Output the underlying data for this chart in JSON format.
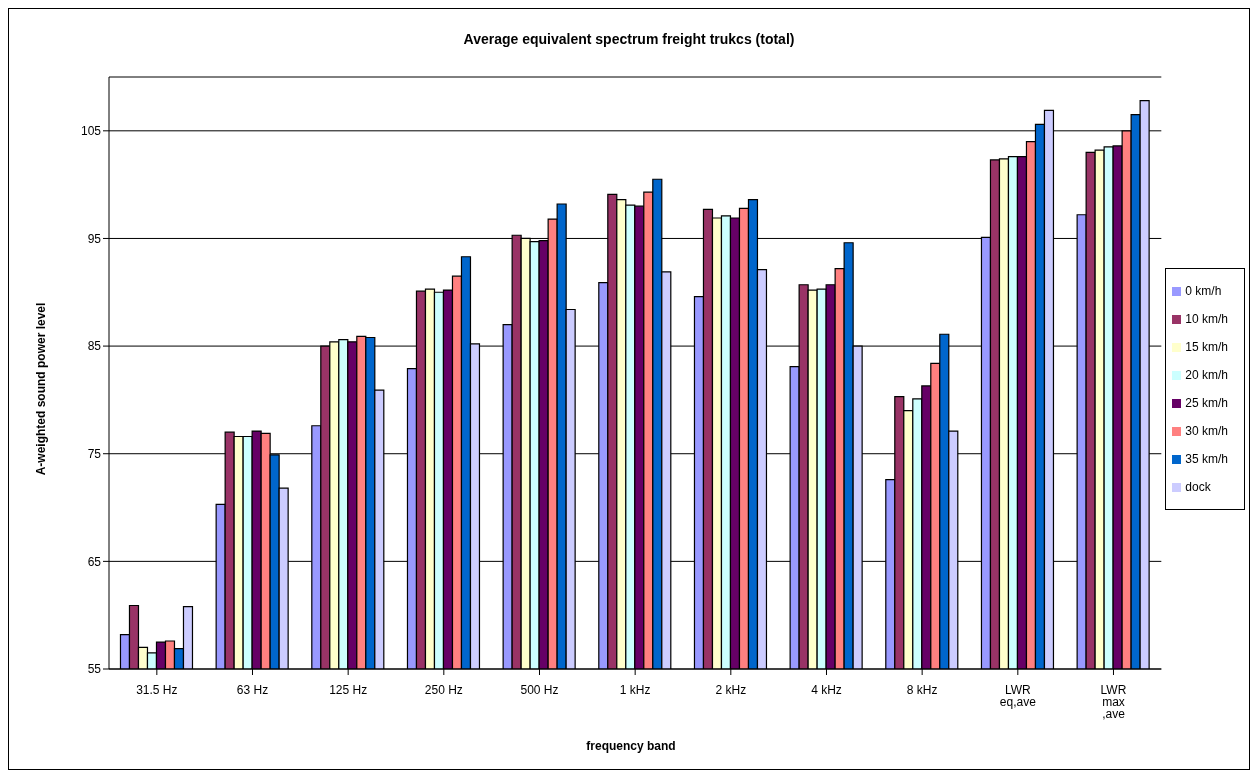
{
  "chart_data": {
    "type": "bar",
    "title": "Average equivalent spectrum  freight trukcs (total)",
    "xlabel": "frequency band",
    "ylabel": "A-weighted sound power level",
    "categories": [
      "31.5 Hz",
      "63 Hz",
      "125 Hz",
      "250 Hz",
      "500 Hz",
      "1 kHz",
      "2 kHz",
      "4 kHz",
      "8 kHz",
      "LWR eq,ave",
      "LWR max ,ave"
    ],
    "series": [
      {
        "name": "0 km/h",
        "color": "#9999ff",
        "values": [
          58.2,
          70.3,
          77.6,
          82.9,
          87.0,
          90.9,
          89.6,
          83.1,
          72.6,
          95.1,
          97.2
        ]
      },
      {
        "name": "10 km/h",
        "color": "#993366",
        "values": [
          60.9,
          77.0,
          85.0,
          90.1,
          95.3,
          99.1,
          97.7,
          90.7,
          80.3,
          102.3,
          103.0
        ]
      },
      {
        "name": "15 km/h",
        "color": "#ffffcc",
        "values": [
          57.0,
          76.6,
          85.4,
          90.3,
          95.0,
          98.6,
          96.9,
          90.2,
          79.0,
          102.4,
          103.2
        ]
      },
      {
        "name": "20 km/h",
        "color": "#ccffff",
        "values": [
          56.5,
          76.6,
          85.6,
          90.0,
          94.7,
          98.1,
          97.1,
          90.3,
          80.1,
          102.6,
          103.5
        ]
      },
      {
        "name": "25 km/h",
        "color": "#660066",
        "values": [
          57.5,
          77.1,
          85.4,
          90.2,
          94.8,
          98.0,
          96.9,
          90.7,
          81.3,
          102.6,
          103.6
        ]
      },
      {
        "name": "30 km/h",
        "color": "#ff8080",
        "values": [
          57.6,
          76.9,
          85.9,
          91.5,
          96.8,
          99.3,
          97.8,
          92.2,
          83.4,
          104.0,
          105.0
        ]
      },
      {
        "name": "35 km/h",
        "color": "#0066cc",
        "values": [
          56.9,
          74.9,
          85.8,
          93.3,
          98.2,
          100.5,
          98.6,
          94.6,
          86.1,
          105.6,
          106.5
        ]
      },
      {
        "name": "dock",
        "color": "#ccccff",
        "values": [
          60.8,
          71.8,
          80.9,
          85.2,
          88.4,
          91.9,
          92.1,
          85.0,
          77.1,
          106.9,
          107.8
        ]
      }
    ],
    "ylim": [
      55,
      110
    ],
    "yticks": [
      55,
      65,
      75,
      85,
      95,
      105
    ],
    "grid": "y",
    "legend": "right"
  }
}
